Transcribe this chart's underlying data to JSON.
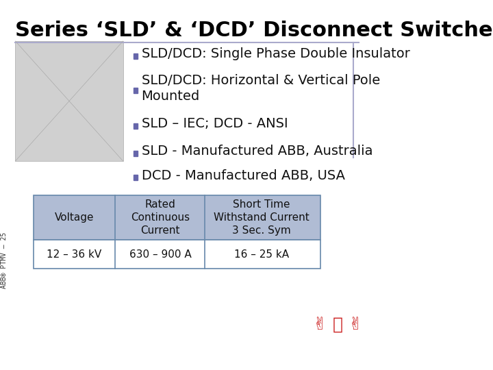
{
  "title": "Series ‘SLD’ & ‘DCD’ Disconnect Switches",
  "title_fontsize": 22,
  "title_bold": true,
  "title_color": "#000000",
  "background_color": "#ffffff",
  "bullet_color": "#6666aa",
  "bullet_square": true,
  "bullets": [
    "SLD/DCD: Single Phase Double Insulator",
    "SLD/DCD: Horizontal & Vertical Pole\nMounted",
    "SLD – IEC; DCD - ANSI",
    "SLD - Manufactured ABB, Australia",
    "DCD - Manufactured ABB, USA"
  ],
  "bullet_fontsize": 14,
  "content_box_border_color": "#aaaacc",
  "table_header_bg": "#b0bcd4",
  "table_border_color": "#6688aa",
  "table_cols": [
    "Voltage",
    "Rated\nContinuous\nCurrent",
    "Short Time\nWithstand Current\n3 Sec. Sym"
  ],
  "table_row": [
    "12 – 36 kV",
    "630 – 900 A",
    "16 – 25 kA"
  ],
  "table_fontsize": 11,
  "side_label": "ABB® PTMV – 25",
  "side_label_fontsize": 7,
  "line_color": "#aaaacc"
}
